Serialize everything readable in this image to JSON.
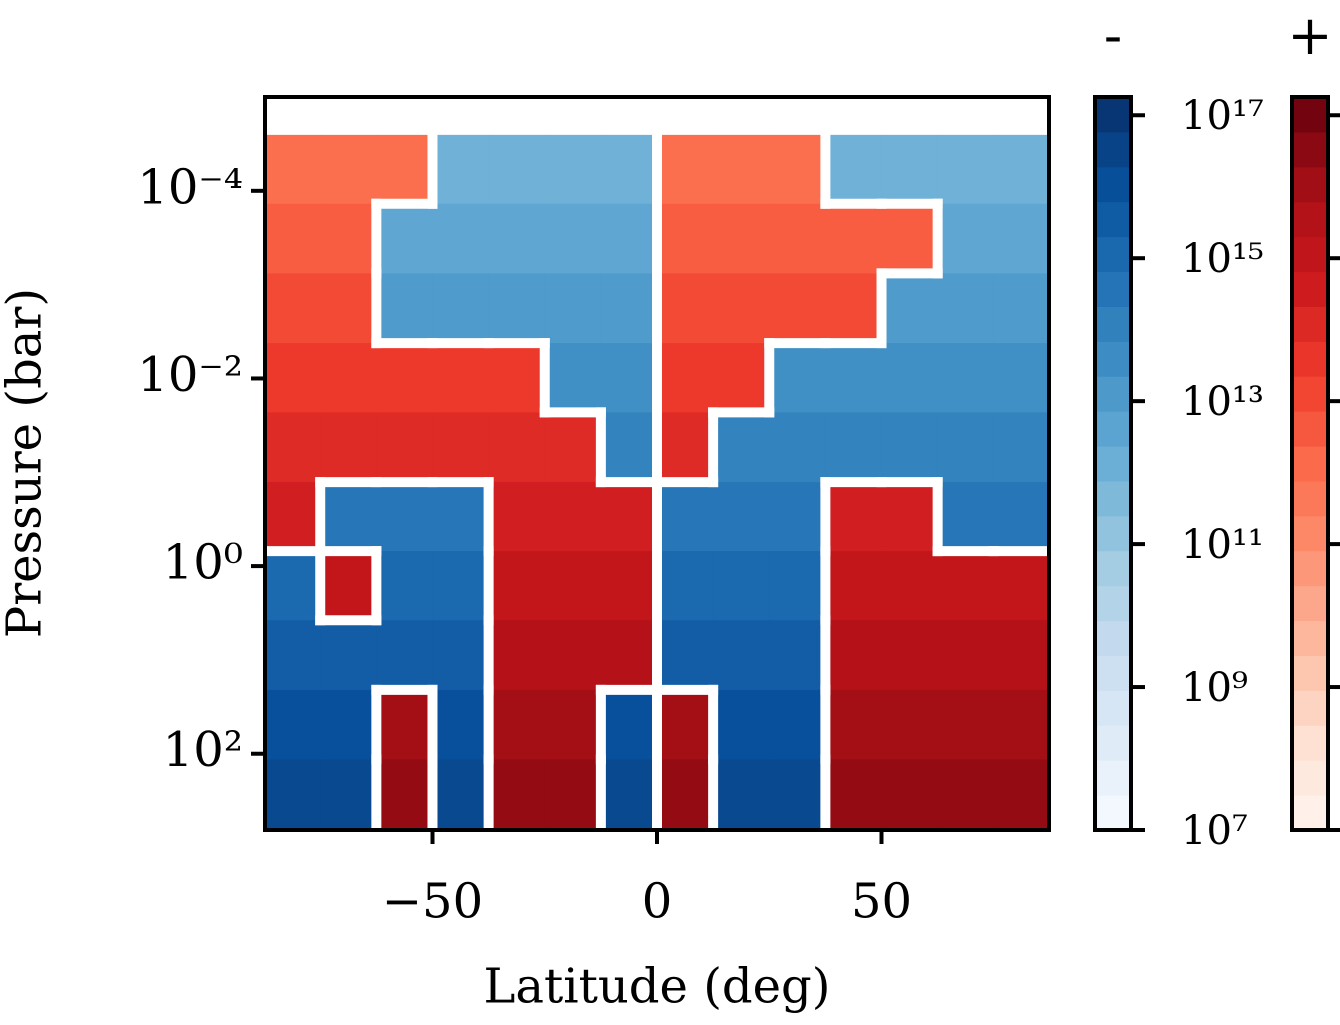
{
  "chart_data": {
    "type": "contour",
    "xlabel": "Latitude (deg)",
    "ylabel": "Pressure (bar)",
    "xlim": [
      -87.3,
      87.3
    ],
    "xticks": [
      {
        "value": -50,
        "label": "−50"
      },
      0,
      50
    ],
    "ylim": [
      650,
      1e-05
    ],
    "yscale": "log",
    "yticks": [
      {
        "value": 0.0001,
        "label": "10⁻⁴"
      },
      {
        "value": 0.01,
        "label": "10⁻²"
      },
      {
        "value": 1,
        "label": "10⁰"
      },
      {
        "value": 100,
        "label": "10²"
      }
    ],
    "x": [
      -81.25,
      -68.75,
      -56.25,
      -43.75,
      -31.25,
      -18.75,
      -6.25,
      6.25,
      18.75,
      31.25,
      43.75,
      56.25,
      68.75,
      81.25
    ],
    "y": [
      5.9e-05,
      0.00032,
      0.0018,
      0.0098,
      0.054,
      0.3,
      1.6,
      8.9,
      49,
      270
    ],
    "z": [
      [
        1000000000000.0,
        1000000000000.0,
        1000000000000.0,
        -1000000000000.0,
        -1000000000000.0,
        -1000000000000.0,
        -1000000000000.0,
        1000000000000.0,
        1000000000000.0,
        1000000000000.0,
        -1000000000000.0,
        -1000000000000.0,
        -1000000000000.0,
        -1000000000000.0
      ],
      [
        3000000000000.0,
        3000000000000.0,
        -3000000000000.0,
        -3000000000000.0,
        -3000000000000.0,
        -3000000000000.0,
        -3000000000000.0,
        3000000000000.0,
        3000000000000.0,
        3000000000000.0,
        3000000000000.0,
        3000000000000.0,
        -3000000000000.0,
        -3000000000000.0
      ],
      [
        10000000000000.0,
        10000000000000.0,
        -10000000000000.0,
        -10000000000000.0,
        -10000000000000.0,
        -10000000000000.0,
        -10000000000000.0,
        10000000000000.0,
        10000000000000.0,
        10000000000000.0,
        10000000000000.0,
        -10000000000000.0,
        -10000000000000.0,
        -10000000000000.0
      ],
      [
        30000000000000.0,
        30000000000000.0,
        30000000000000.0,
        30000000000000.0,
        30000000000000.0,
        -30000000000000.0,
        -30000000000000.0,
        30000000000000.0,
        30000000000000.0,
        -30000000000000.0,
        -30000000000000.0,
        -30000000000000.0,
        -30000000000000.0,
        -30000000000000.0
      ],
      [
        100000000000000.0,
        100000000000000.0,
        100000000000000.0,
        100000000000000.0,
        100000000000000.0,
        100000000000000.0,
        -100000000000000.0,
        100000000000000.0,
        -100000000000000.0,
        -100000000000000.0,
        -100000000000000.0,
        -100000000000000.0,
        -100000000000000.0,
        -100000000000000.0
      ],
      [
        300000000000000.0,
        -300000000000000.0,
        -300000000000000.0,
        -300000000000000.0,
        300000000000000.0,
        300000000000000.0,
        300000000000000.0,
        -300000000000000.0,
        -300000000000000.0,
        -300000000000000.0,
        300000000000000.0,
        300000000000000.0,
        -300000000000000.0,
        -300000000000000.0
      ],
      [
        -1000000000000000.0,
        1000000000000000.0,
        -1000000000000000.0,
        -1000000000000000.0,
        1000000000000000.0,
        1000000000000000.0,
        1000000000000000.0,
        -1000000000000000.0,
        -1000000000000000.0,
        -1000000000000000.0,
        1000000000000000.0,
        1000000000000000.0,
        1000000000000000.0,
        1000000000000000.0
      ],
      [
        -3000000000000000.0,
        -3000000000000000.0,
        -3000000000000000.0,
        -3000000000000000.0,
        3000000000000000.0,
        3000000000000000.0,
        3000000000000000.0,
        -3000000000000000.0,
        -3000000000000000.0,
        -3000000000000000.0,
        3000000000000000.0,
        3000000000000000.0,
        3000000000000000.0,
        3000000000000000.0
      ],
      [
        -1e+16,
        -1e+16,
        1e+16,
        -1e+16,
        1e+16,
        1e+16,
        -1e+16,
        1e+16,
        -1e+16,
        -1e+16,
        1e+16,
        1e+16,
        1e+16,
        1e+16
      ],
      [
        -2e+16,
        -2e+16,
        2e+16,
        -2e+16,
        2e+16,
        2e+16,
        -2e+16,
        2e+16,
        -2e+16,
        -2e+16,
        2e+16,
        2e+16,
        2e+16,
        2e+16
      ]
    ],
    "colorbars": [
      {
        "title": "-",
        "cmap": "Blues"
      },
      {
        "title": "+",
        "cmap": "Reds"
      }
    ],
    "clim": [
      10000000,
      180000000000000000
    ],
    "cticks": [
      {
        "value": 10000000,
        "label": "10⁷"
      },
      {
        "value": 1000000000,
        "label": "10⁹"
      },
      {
        "value": 100000000000,
        "label": "10¹¹"
      },
      {
        "value": 10000000000000,
        "label": "10¹³"
      },
      {
        "value": 1000000000000000,
        "label": "10¹⁵"
      },
      {
        "value": 100000000000000000,
        "label": "10¹⁷"
      }
    ]
  }
}
